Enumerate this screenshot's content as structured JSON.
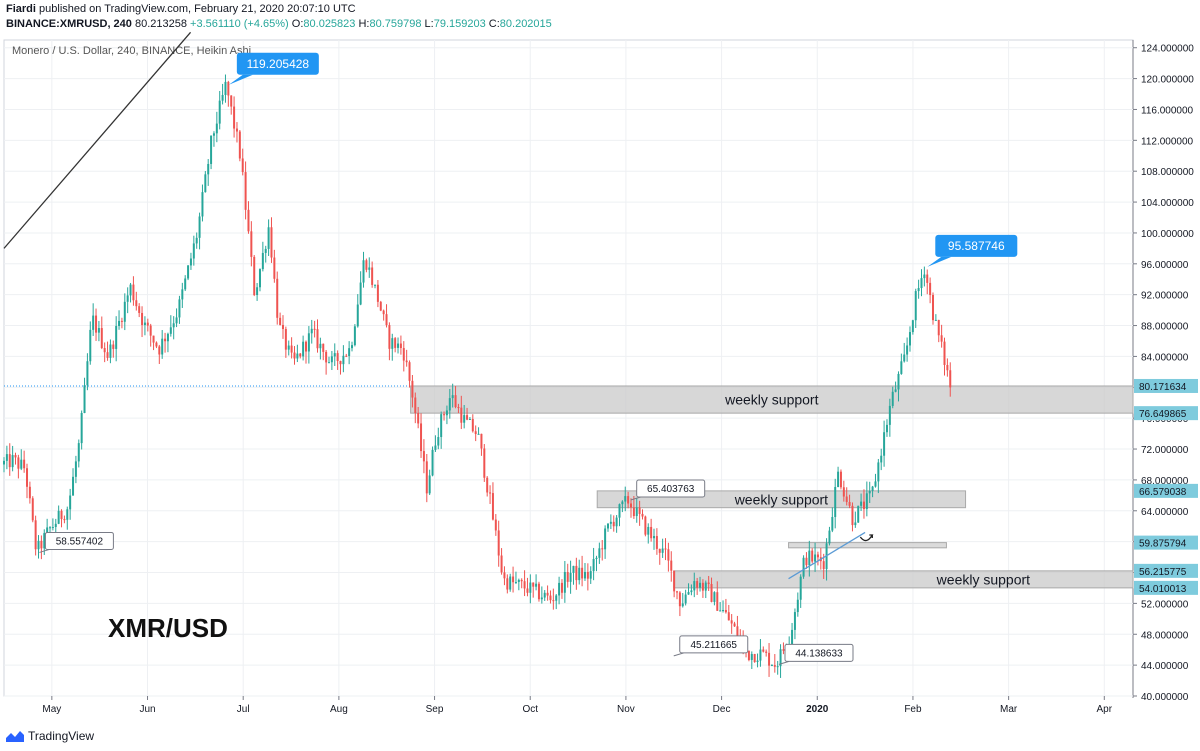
{
  "header": {
    "author": "Fiardi",
    "published_text": "published on TradingView.com, February 21, 2020 20:07:10 UTC",
    "symbol": "BINANCE:XMRUSD, 240",
    "last": "80.213258",
    "change": "+3.561110 (+4.65%)",
    "o_label": "O:",
    "o_value": "80.025823",
    "h_label": "H:",
    "h_value": "80.759798",
    "l_label": "L:",
    "l_value": "79.159203",
    "c_label": "C:",
    "c_value": "80.202015"
  },
  "footer": {
    "brand": "TradingView",
    "logo_icon": "tradingview-logo-icon"
  },
  "colors": {
    "up": "#26a69a",
    "down": "#ef5350",
    "axis_badge": "#7ecbdd",
    "callout": "#2196f3",
    "zone": "#c9c9c9"
  },
  "chart_data": {
    "type": "candlestick",
    "title": "Monero / U.S. Dollar, 240, BINANCE, Heikin Ashi",
    "watermark": "XMR/USD",
    "y_axis": {
      "ylim": [
        40,
        125
      ],
      "ticks": [
        "124.000000",
        "120.000000",
        "116.000000",
        "112.000000",
        "108.000000",
        "104.000000",
        "100.000000",
        "96.000000",
        "92.000000",
        "88.000000",
        "84.000000",
        "80.000000",
        "76.000000",
        "72.000000",
        "68.000000",
        "64.000000",
        "60.000000",
        "56.000000",
        "52.000000",
        "48.000000",
        "44.000000",
        "40.000000"
      ],
      "tick_values": [
        124,
        120,
        116,
        112,
        108,
        104,
        100,
        96,
        92,
        88,
        84,
        80,
        76,
        72,
        68,
        64,
        60,
        56,
        52,
        48,
        44,
        40
      ]
    },
    "x_axis": {
      "labels": [
        "May",
        "Jun",
        "Jul",
        "Aug",
        "Sep",
        "Oct",
        "Nov",
        "Dec",
        "2020",
        "Feb",
        "Mar",
        "Apr"
      ],
      "bold": "2020",
      "month_index": [
        1,
        2,
        3,
        4,
        5,
        6,
        7,
        8,
        9,
        10,
        11,
        12
      ]
    },
    "x_range": [
      0,
      11.8
    ],
    "price_path": [
      [
        0,
        70
      ],
      [
        0.12,
        70.5
      ],
      [
        0.25,
        69.5
      ],
      [
        0.32,
        63
      ],
      [
        0.37,
        58.6
      ],
      [
        0.5,
        61.5
      ],
      [
        0.7,
        64.5
      ],
      [
        0.82,
        73
      ],
      [
        0.95,
        89
      ],
      [
        1.12,
        84
      ],
      [
        1.35,
        93
      ],
      [
        1.5,
        88
      ],
      [
        1.65,
        85
      ],
      [
        1.85,
        90
      ],
      [
        2.05,
        100
      ],
      [
        2.2,
        112
      ],
      [
        2.35,
        119.2
      ],
      [
        2.5,
        110
      ],
      [
        2.65,
        92
      ],
      [
        2.8,
        101
      ],
      [
        2.9,
        88
      ],
      [
        3.05,
        83
      ],
      [
        3.25,
        87
      ],
      [
        3.45,
        83
      ],
      [
        3.65,
        85
      ],
      [
        3.8,
        97
      ],
      [
        3.95,
        91
      ],
      [
        4.05,
        86
      ],
      [
        4.2,
        85
      ],
      [
        4.3,
        79
      ],
      [
        4.45,
        67
      ],
      [
        4.55,
        74
      ],
      [
        4.7,
        79
      ],
      [
        4.85,
        75.5
      ],
      [
        4.98,
        74
      ],
      [
        5.1,
        66
      ],
      [
        5.25,
        55
      ],
      [
        5.5,
        54
      ],
      [
        5.75,
        52.5
      ],
      [
        5.95,
        56
      ],
      [
        6.15,
        55.5
      ],
      [
        6.35,
        62
      ],
      [
        6.55,
        65.4
      ],
      [
        6.75,
        61.5
      ],
      [
        6.95,
        58
      ],
      [
        7.1,
        52
      ],
      [
        7.25,
        55
      ],
      [
        7.4,
        53.5
      ],
      [
        7.6,
        50
      ],
      [
        7.8,
        45.5
      ],
      [
        7.95,
        45.5
      ],
      [
        8.1,
        44.1
      ],
      [
        8.25,
        48
      ],
      [
        8.4,
        58
      ],
      [
        8.6,
        57.5
      ],
      [
        8.75,
        69
      ],
      [
        8.9,
        63
      ],
      [
        9.1,
        66
      ],
      [
        9.3,
        78
      ],
      [
        9.45,
        84
      ],
      [
        9.55,
        91
      ],
      [
        9.65,
        95.6
      ],
      [
        9.75,
        89
      ],
      [
        9.85,
        84
      ],
      [
        9.92,
        80.2
      ]
    ],
    "reference_level": 80.171634,
    "zones": [
      {
        "x0": 4.25,
        "x1": 11.8,
        "y_top": 80.171634,
        "y_bottom": 76.649865,
        "label": "weekly support"
      },
      {
        "x0": 6.2,
        "x1": 10.05,
        "y_top": 66.579038,
        "y_bottom": 64.4,
        "label": "weekly support"
      },
      {
        "x0": 7.0,
        "x1": 11.8,
        "y_top": 56.215775,
        "y_bottom": 54.010013,
        "label": "weekly support"
      },
      {
        "x0": 8.2,
        "x1": 9.85,
        "y_top": 59.875794,
        "y_bottom": 59.2,
        "label": ""
      }
    ],
    "axis_badges": [
      "80.171634",
      "76.649865",
      "66.579038",
      "59.875794",
      "56.215775",
      "54.010013"
    ],
    "axis_badge_values": [
      80.171634,
      76.649865,
      66.579038,
      59.875794,
      56.215775,
      54.010013
    ],
    "callouts": [
      {
        "text": "119.205428",
        "x": 2.35,
        "y": 119.2,
        "style": "blue"
      },
      {
        "text": "95.587746",
        "x": 9.65,
        "y": 95.6,
        "style": "blue"
      },
      {
        "text": "65.403763",
        "x": 6.55,
        "y": 65.4,
        "style": "white"
      },
      {
        "text": "58.557402",
        "x": 0.37,
        "y": 58.6,
        "style": "white"
      },
      {
        "text": "45.211665",
        "x": 7.0,
        "y": 45.2,
        "style": "white"
      },
      {
        "text": "44.138633",
        "x": 8.1,
        "y": 44.1,
        "style": "white"
      }
    ],
    "trendlines": [
      {
        "points": [
          [
            0.0,
            98
          ],
          [
            1.95,
            126
          ]
        ],
        "color": "#333333"
      },
      {
        "points": [
          [
            8.2,
            55.2
          ],
          [
            9.0,
            61.2
          ]
        ],
        "color": "#5b9bd5"
      }
    ]
  }
}
